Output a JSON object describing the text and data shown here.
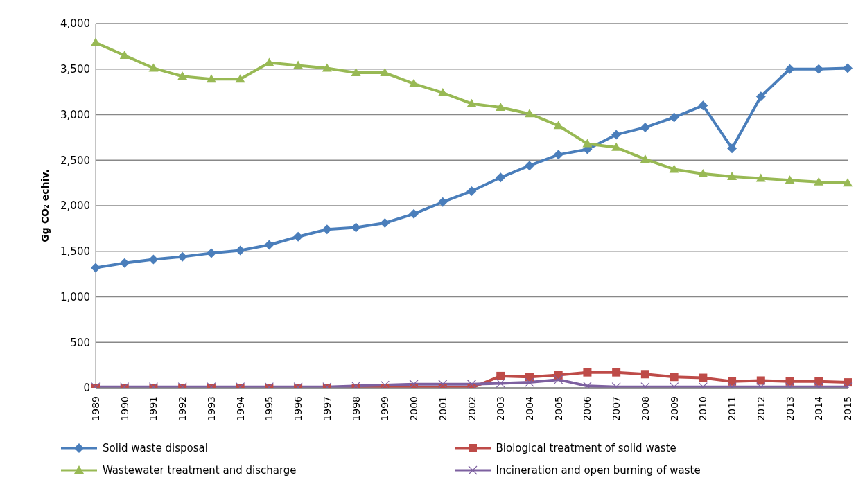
{
  "chart_data": {
    "type": "line",
    "ylabel": "Gg CO₂ echiv.",
    "categories": [
      "1989",
      "1990",
      "1991",
      "1992",
      "1993",
      "1994",
      "1995",
      "1996",
      "1997",
      "1998",
      "1999",
      "2000",
      "2001",
      "2002",
      "2003",
      "2004",
      "2005",
      "2006",
      "2007",
      "2008",
      "2009",
      "2010",
      "2011",
      "2012",
      "2013",
      "2014",
      "2015"
    ],
    "series": [
      {
        "name": "Solid waste disposal",
        "color": "#4a7ebb",
        "marker": "diamond",
        "values": [
          1320,
          1370,
          1410,
          1440,
          1480,
          1510,
          1570,
          1660,
          1740,
          1760,
          1810,
          1910,
          2040,
          2160,
          2310,
          2440,
          2560,
          2620,
          2780,
          2860,
          2970,
          3100,
          2630,
          3200,
          3500,
          3500,
          3510
        ]
      },
      {
        "name": "Biological treatment of solid waste",
        "color": "#be4b48",
        "marker": "square",
        "values": [
          0,
          0,
          0,
          0,
          0,
          0,
          0,
          0,
          0,
          0,
          0,
          0,
          0,
          0,
          130,
          120,
          140,
          170,
          170,
          150,
          120,
          110,
          70,
          80,
          70,
          70,
          60
        ]
      },
      {
        "name": "Wastewater treatment and discharge",
        "color": "#98b954",
        "marker": "triangle",
        "values": [
          3790,
          3650,
          3510,
          3420,
          3390,
          3390,
          3570,
          3540,
          3510,
          3460,
          3460,
          3340,
          3240,
          3120,
          3080,
          3010,
          2880,
          2680,
          2640,
          2510,
          2400,
          2350,
          2320,
          2300,
          2280,
          2260,
          2250
        ]
      },
      {
        "name": "Incineration and open burning of waste",
        "color": "#7d60a0",
        "marker": "cross",
        "values": [
          10,
          10,
          10,
          10,
          10,
          10,
          10,
          10,
          10,
          20,
          30,
          40,
          40,
          40,
          50,
          60,
          90,
          20,
          10,
          10,
          10,
          10,
          10,
          10,
          10,
          10,
          10
        ]
      }
    ],
    "ylim": [
      0,
      4000
    ],
    "yticks": [
      {
        "value": 0,
        "label": "0"
      },
      {
        "value": 500,
        "label": "500"
      },
      {
        "value": 1000,
        "label": "1,000"
      },
      {
        "value": 1500,
        "label": "1,500"
      },
      {
        "value": 2000,
        "label": "2,000"
      },
      {
        "value": 2500,
        "label": "2,500"
      },
      {
        "value": 3000,
        "label": "3,000"
      },
      {
        "value": 3500,
        "label": "3,500"
      },
      {
        "value": 4000,
        "label": "4,000"
      }
    ],
    "grid": "y",
    "legend": "bottom"
  }
}
